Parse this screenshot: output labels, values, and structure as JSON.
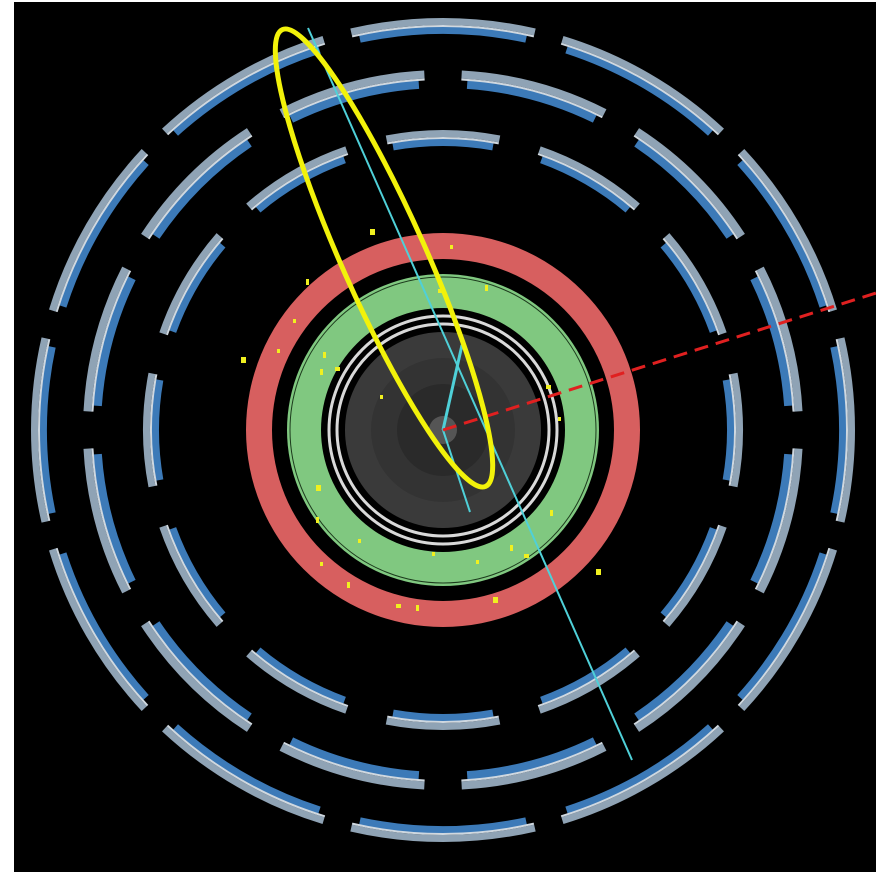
{
  "colors": {
    "background": "#000000",
    "frame": "#ffffff",
    "muon_chamber_steel": "#8fa3b5",
    "muon_chamber_blue": "#3c7ab8",
    "calorimeter": "#d75f5f",
    "inner_calorimeter": "#80c880",
    "tracker": "#3a3a3a",
    "track": "#4fd0d8",
    "highlight_ellipse": "#f2f20a",
    "missing_energy": "#e02020",
    "energy_deposit": "#f0f020"
  },
  "event_display": {
    "layers": [
      {
        "name": "muon-chamber-outer"
      },
      {
        "name": "muon-chamber-middle"
      },
      {
        "name": "muon-chamber-inner"
      },
      {
        "name": "hadronic-calorimeter"
      },
      {
        "name": "electromagnetic-calorimeter"
      },
      {
        "name": "inner-tracker"
      }
    ],
    "features": [
      "muon-track",
      "highlight-ellipse",
      "missing-transverse-energy"
    ]
  }
}
